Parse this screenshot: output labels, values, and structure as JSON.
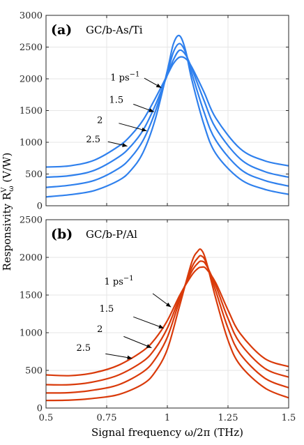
{
  "chart_data": [
    {
      "type": "line",
      "panel_letter": "(a)",
      "title": "GC/b-As/Ti",
      "xlabel": "Signal frequency ω/2π (THz)",
      "ylabel": "Responsivity R_ω^V (V/W)",
      "xlim": [
        0.5,
        1.5
      ],
      "ylim": [
        0,
        3000
      ],
      "xticks": [
        "0.5",
        "0.75",
        "1",
        "1.25",
        "1.5"
      ],
      "yticks": [
        "0",
        "500",
        "1000",
        "1500",
        "2000",
        "2500",
        "3000"
      ],
      "grid": true,
      "color": "#2f80ed",
      "series": [
        {
          "name": "1 ps⁻¹",
          "x": [
            0.5,
            0.6,
            0.7,
            0.8,
            0.85,
            0.9,
            0.95,
            1.0,
            1.025,
            1.05,
            1.075,
            1.1,
            1.15,
            1.2,
            1.3,
            1.4,
            1.5
          ],
          "y": [
            140,
            175,
            240,
            400,
            560,
            840,
            1360,
            2130,
            2550,
            2680,
            2450,
            2000,
            1290,
            820,
            420,
            260,
            180
          ]
        },
        {
          "name": "1.5",
          "x": [
            0.5,
            0.6,
            0.7,
            0.8,
            0.85,
            0.9,
            0.95,
            1.0,
            1.025,
            1.05,
            1.075,
            1.1,
            1.15,
            1.2,
            1.3,
            1.4,
            1.5
          ],
          "y": [
            290,
            325,
            400,
            590,
            760,
            1030,
            1480,
            2090,
            2420,
            2555,
            2420,
            2100,
            1490,
            1030,
            580,
            400,
            310
          ]
        },
        {
          "name": "2",
          "x": [
            0.5,
            0.6,
            0.7,
            0.8,
            0.85,
            0.9,
            0.95,
            1.0,
            1.025,
            1.05,
            1.075,
            1.1,
            1.15,
            1.2,
            1.3,
            1.4,
            1.5
          ],
          "y": [
            450,
            475,
            560,
            770,
            940,
            1190,
            1580,
            2060,
            2300,
            2450,
            2380,
            2170,
            1670,
            1220,
            740,
            540,
            450
          ]
        },
        {
          "name": "2.5",
          "x": [
            0.5,
            0.6,
            0.7,
            0.8,
            0.85,
            0.9,
            0.95,
            1.0,
            1.025,
            1.05,
            1.075,
            1.1,
            1.15,
            1.2,
            1.3,
            1.4,
            1.5
          ],
          "y": [
            610,
            630,
            720,
            940,
            1110,
            1350,
            1690,
            2060,
            2240,
            2340,
            2320,
            2190,
            1800,
            1380,
            900,
            710,
            630
          ]
        }
      ],
      "annotations": [
        "1 ps⁻¹",
        "1.5",
        "2",
        "2.5"
      ]
    },
    {
      "type": "line",
      "panel_letter": "(b)",
      "title": "GC/b-P/Al",
      "xlabel": "Signal frequency ω/2π (THz)",
      "ylabel": "Responsivity R_ω^V (V/W)",
      "xlim": [
        0.5,
        1.5
      ],
      "ylim": [
        0,
        2500
      ],
      "xticks": [
        "0.5",
        "0.75",
        "1",
        "1.25",
        "1.5"
      ],
      "yticks": [
        "0",
        "500",
        "1000",
        "1500",
        "2000",
        "2500"
      ],
      "grid": true,
      "color": "#d93a0a",
      "series": [
        {
          "name": "1 ps⁻¹",
          "x": [
            0.5,
            0.6,
            0.7,
            0.8,
            0.9,
            0.95,
            1.0,
            1.05,
            1.1,
            1.125,
            1.14,
            1.16,
            1.2,
            1.25,
            1.3,
            1.4,
            1.5
          ],
          "y": [
            100,
            105,
            130,
            180,
            320,
            480,
            780,
            1350,
            1930,
            2080,
            2100,
            1950,
            1450,
            900,
            570,
            270,
            135
          ]
        },
        {
          "name": "1.5",
          "x": [
            0.5,
            0.6,
            0.7,
            0.8,
            0.9,
            0.95,
            1.0,
            1.05,
            1.1,
            1.125,
            1.14,
            1.16,
            1.2,
            1.25,
            1.3,
            1.4,
            1.5
          ],
          "y": [
            200,
            205,
            240,
            310,
            480,
            650,
            940,
            1420,
            1860,
            1990,
            2020,
            1930,
            1550,
            1060,
            720,
            400,
            270
          ]
        },
        {
          "name": "2",
          "x": [
            0.5,
            0.6,
            0.7,
            0.8,
            0.9,
            0.95,
            1.0,
            1.05,
            1.1,
            1.125,
            1.14,
            1.16,
            1.2,
            1.25,
            1.3,
            1.4,
            1.5
          ],
          "y": [
            310,
            310,
            350,
            440,
            620,
            790,
            1060,
            1460,
            1810,
            1920,
            1950,
            1900,
            1620,
            1190,
            860,
            530,
            410
          ]
        },
        {
          "name": "2.5",
          "x": [
            0.5,
            0.6,
            0.7,
            0.8,
            0.9,
            0.95,
            1.0,
            1.05,
            1.1,
            1.125,
            1.14,
            1.16,
            1.2,
            1.25,
            1.3,
            1.4,
            1.5
          ],
          "y": [
            440,
            430,
            470,
            570,
            760,
            920,
            1160,
            1490,
            1760,
            1850,
            1870,
            1850,
            1660,
            1300,
            990,
            660,
            550
          ]
        }
      ],
      "annotations": [
        "1 ps⁻¹",
        "1.5",
        "2",
        "2.5"
      ]
    }
  ]
}
